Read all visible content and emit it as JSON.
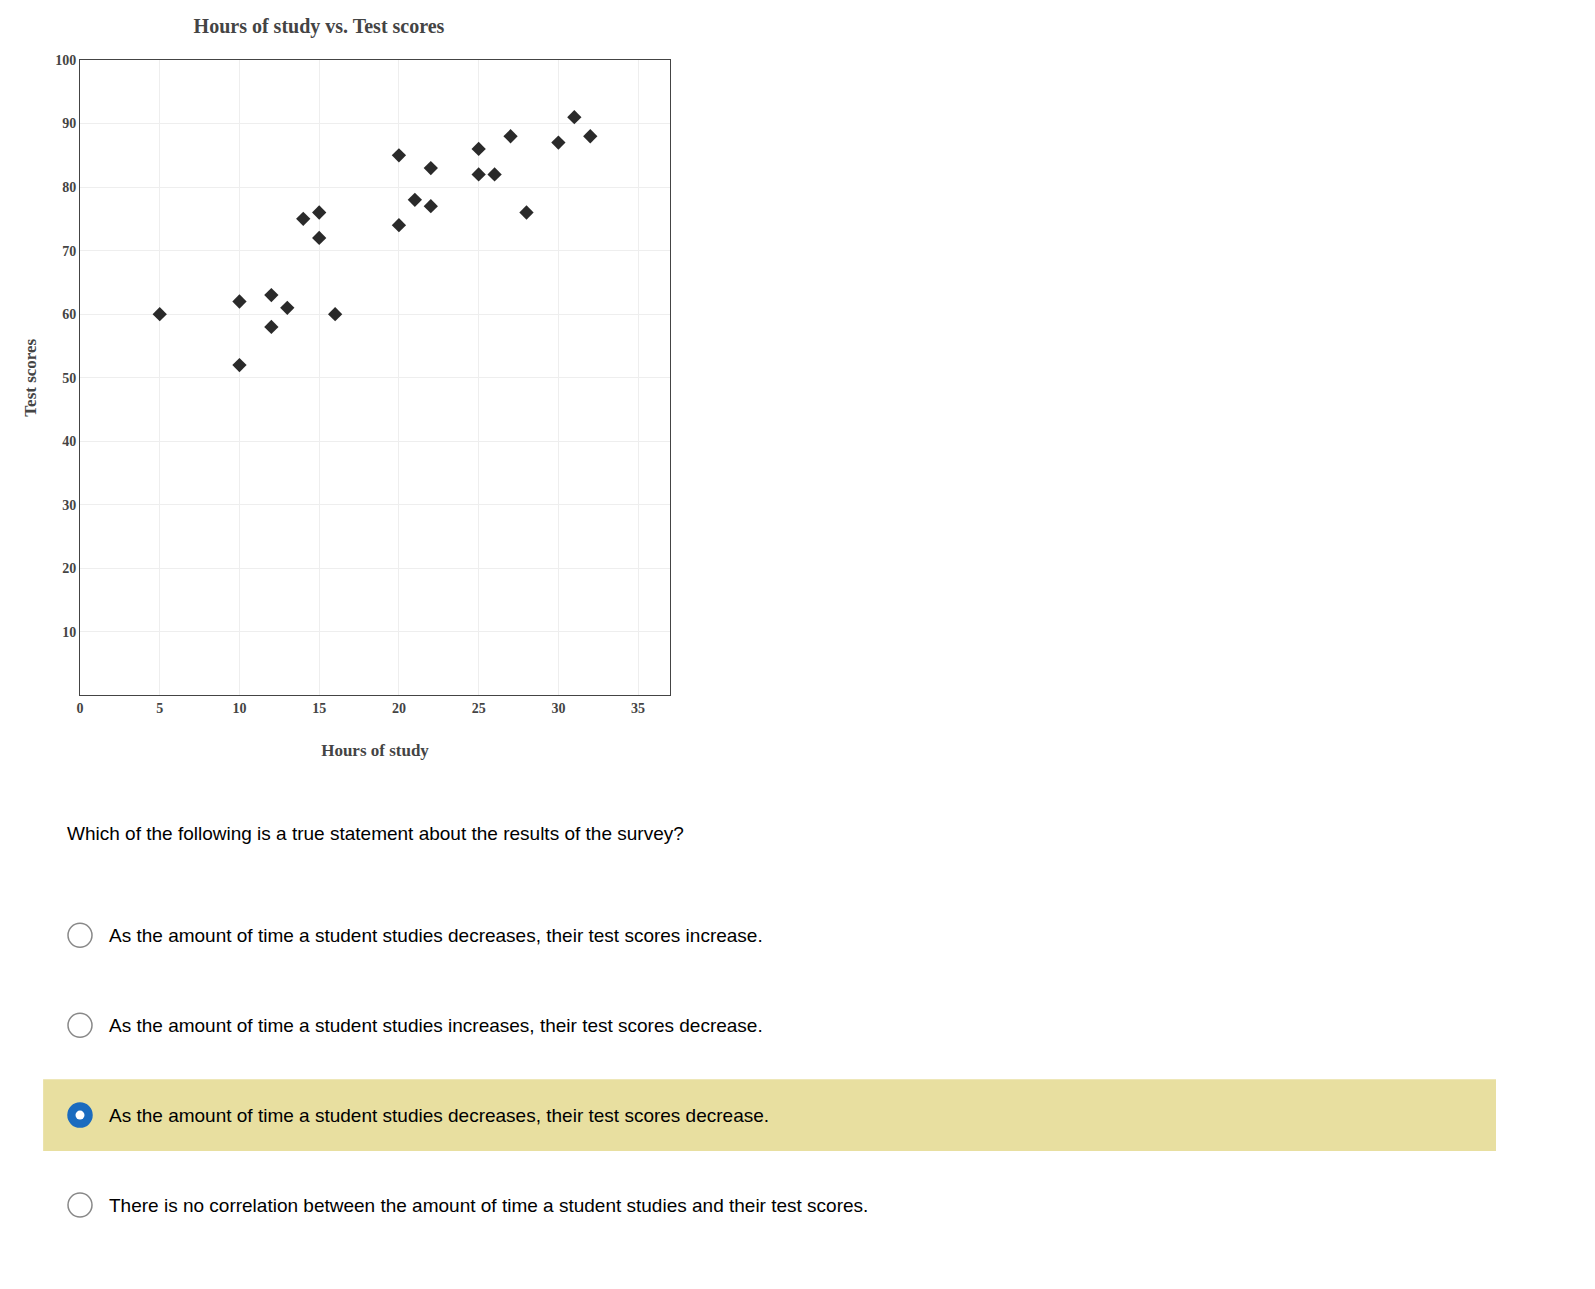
{
  "chart_data": {
    "type": "scatter",
    "title": "Hours of study vs. Test scores",
    "x_label": "Hours of study",
    "y_label": "Test scores",
    "x": [
      5,
      10,
      10,
      12,
      12,
      13,
      14,
      15,
      15,
      16,
      20,
      20,
      21,
      22,
      22,
      25,
      25,
      26,
      27,
      28,
      30,
      31,
      32
    ],
    "values": [
      60,
      52,
      62,
      58,
      63,
      61,
      75,
      72,
      76,
      60,
      85,
      74,
      78,
      77,
      83,
      82,
      86,
      82,
      88,
      76,
      87,
      91,
      88
    ],
    "color": "#2a2a2a",
    "marker": "diamond",
    "xlim": [
      0,
      37
    ],
    "ylim": [
      0,
      100
    ],
    "xticks": [
      0,
      5,
      10,
      15,
      20,
      25,
      30,
      35
    ],
    "yticks": [
      10,
      20,
      30,
      40,
      50,
      60,
      70,
      80,
      90,
      100
    ],
    "grid": true,
    "annotations": [
      {
        "text": "Which of the following is a true statement about the results of the survey?"
      },
      {
        "text": "As the amount of time a student studies decreases, their test scores increase."
      },
      {
        "text": "As the amount of time a student studies increases, their test scores decrease."
      },
      {
        "text": "As the amount of time a student studies decreases, their test scores decrease.",
        "color": "#e8dfa0"
      },
      {
        "text": "There is no correlation between the amount of time a student studies and their test scores."
      }
    ]
  }
}
